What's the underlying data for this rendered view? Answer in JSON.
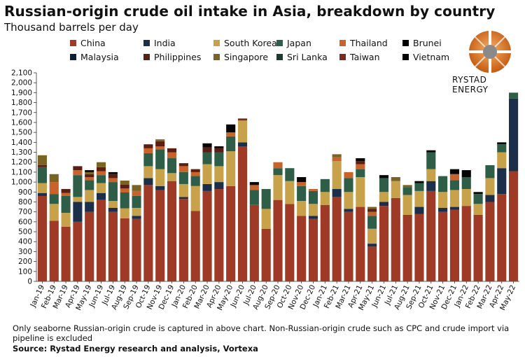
{
  "header": {
    "title": "Russian-origin crude oil intake in Asia, breakdown by country",
    "subtitle": "Thousand barrels per day"
  },
  "logo": {
    "text": "RYSTAD ENERGY"
  },
  "footer": {
    "note": "Only seaborne Russian-origin crude is captured in above chart. Non-Russian-origin crude such as CPC and crude import via pipeline is excluded",
    "source": "Source: Rystad Energy research and analysis,  Vortexa"
  },
  "chart_data": {
    "type": "bar",
    "stacked": true,
    "ylim": [
      0,
      2100
    ],
    "yticks": [
      0,
      100,
      200,
      300,
      400,
      500,
      600,
      700,
      800,
      900,
      1000,
      1100,
      1200,
      1300,
      1400,
      1500,
      1600,
      1700,
      1800,
      1900,
      2000,
      2100
    ],
    "ytick_labels": [
      "0",
      "100",
      "200",
      "300",
      "400",
      "500",
      "600",
      "700",
      "800",
      "900",
      "1,000",
      "1,100",
      "1,200",
      "1,300",
      "1,400",
      "1,500",
      "1,600",
      "1,700",
      "1,800",
      "1,900",
      "2,000",
      "2,100"
    ],
    "legend_position": "top",
    "grid": false,
    "categories": [
      "Jan-19",
      "Feb-19",
      "Mar-19",
      "Apr-19",
      "May-19",
      "Jun-19",
      "Jul-19",
      "Aug-19",
      "Sep-19",
      "Oct-19",
      "Nov-19",
      "Dec-19",
      "Jan-20",
      "Feb-20",
      "Mar-20",
      "Apr-20",
      "May-20",
      "Jun-20",
      "Jul-20",
      "Aug-20",
      "Sep-20",
      "Oct-20",
      "Nov-20",
      "Dec-20",
      "Jan-21",
      "Feb-21",
      "Mar-21",
      "Apr-21",
      "May-21",
      "Jun-21",
      "Jul-21",
      "Aug-21",
      "Sep-21",
      "Oct-21",
      "Nov-21",
      "Dec-21",
      "Jan-22",
      "Feb-22",
      "Mar-22",
      "Apr-22",
      "May-22"
    ],
    "x_labels_shown": [
      "Jan-19",
      "Mar-19",
      "May-19",
      "Jul-19",
      "Aug-19",
      "Sep-19",
      "Oct-19",
      "Nov-19",
      "Dec-19",
      "Jan-20",
      "Feb-20",
      "Mar-20",
      "Apr-20",
      "May-20",
      "Jun-20",
      "Jul-20",
      "Aug-20",
      "Sep-20",
      "Oct-20",
      "Nov-20",
      "Dec-20",
      "Jan-21",
      "Feb-21",
      "Mar-21",
      "Apr-21",
      "May-21",
      "Jun-21",
      "Jul-21",
      "Aug-21",
      "Sep-21",
      "Oct-21",
      "Nov-21",
      "Dec-21",
      "Jan-22",
      "Feb-22",
      "Mar-22",
      "Apr-22",
      "May-22"
    ],
    "x_labels_shown_full": [
      "Jan-19",
      "Feb-19",
      "Mar-19",
      "Apr-19",
      "May-19",
      "Jun-19",
      "Jul-19",
      "Aug-19",
      "Sep-19",
      "Oct-19",
      "Nov-19",
      "Dec-19",
      "Jan-20",
      "Feb-20",
      "Mar-20",
      "Apr-20",
      "May-20",
      "Jun-20",
      "Jul-20",
      "Aug-20",
      "Sep-20",
      "Oct-20",
      "Nov-20",
      "Dec-20",
      "Jan-21",
      "Feb-21",
      "Mar-21",
      "Apr-21",
      "May-21",
      "Jun-21",
      "Jul-21",
      "Aug-21",
      "Sep-21",
      "Oct-21",
      "Nov-21",
      "Dec-21",
      "Jan-22",
      "Feb-22",
      "Mar-22",
      "Apr-22",
      "May-22"
    ],
    "series": [
      {
        "name": "China",
        "color": "#9e3a26",
        "values": [
          860,
          610,
          550,
          600,
          700,
          820,
          700,
          635,
          630,
          970,
          920,
          1010,
          830,
          710,
          910,
          930,
          960,
          1360,
          770,
          530,
          820,
          780,
          660,
          630,
          770,
          850,
          700,
          750,
          350,
          760,
          840,
          670,
          680,
          910,
          700,
          720,
          760,
          670,
          800,
          880,
          1110
        ]
      },
      {
        "name": "India",
        "color": "#1b2f4a",
        "values": [
          30,
          0,
          0,
          200,
          100,
          70,
          40,
          0,
          30,
          70,
          40,
          0,
          20,
          0,
          70,
          70,
          0,
          40,
          0,
          0,
          0,
          0,
          0,
          30,
          0,
          80,
          30,
          0,
          30,
          40,
          0,
          0,
          70,
          100,
          40,
          30,
          0,
          0,
          70,
          260,
          730
        ]
      },
      {
        "name": "South Korea",
        "color": "#c7a24b",
        "values": [
          100,
          170,
          140,
          50,
          120,
          100,
          70,
          100,
          80,
          120,
          170,
          80,
          130,
          250,
          200,
          160,
          350,
          220,
          0,
          200,
          250,
          230,
          150,
          120,
          130,
          280,
          170,
          300,
          150,
          100,
          170,
          200,
          160,
          120,
          160,
          170,
          170,
          110,
          170,
          160,
          0
        ]
      },
      {
        "name": "Japan",
        "color": "#2e5e47",
        "values": [
          160,
          100,
          170,
          220,
          100,
          80,
          190,
          160,
          120,
          130,
          200,
          150,
          120,
          100,
          120,
          140,
          150,
          0,
          150,
          200,
          70,
          130,
          150,
          130,
          130,
          0,
          140,
          80,
          130,
          140,
          0,
          80,
          80,
          170,
          160,
          100,
          120,
          100,
          130,
          80,
          60
        ]
      },
      {
        "name": "Thailand",
        "color": "#c9622b",
        "values": [
          0,
          120,
          30,
          50,
          30,
          40,
          40,
          40,
          50,
          50,
          30,
          60,
          60,
          40,
          0,
          0,
          40,
          0,
          50,
          0,
          60,
          0,
          40,
          20,
          0,
          40,
          60,
          50,
          40,
          0,
          0,
          0,
          0,
          0,
          0,
          60,
          0,
          0,
          0,
          0,
          0
        ]
      },
      {
        "name": "Brunei",
        "color": "#000000",
        "values": [
          0,
          0,
          0,
          0,
          0,
          0,
          0,
          0,
          0,
          0,
          0,
          0,
          0,
          0,
          0,
          0,
          0,
          0,
          0,
          0,
          0,
          0,
          0,
          0,
          0,
          0,
          0,
          0,
          0,
          0,
          0,
          0,
          0,
          0,
          0,
          0,
          0,
          0,
          0,
          0,
          0
        ]
      },
      {
        "name": "Malaysia",
        "color": "#0d1f33",
        "values": [
          0,
          0,
          0,
          0,
          0,
          0,
          0,
          0,
          0,
          0,
          0,
          0,
          0,
          0,
          0,
          0,
          0,
          0,
          0,
          0,
          0,
          0,
          0,
          0,
          0,
          0,
          0,
          0,
          0,
          0,
          0,
          0,
          0,
          0,
          0,
          0,
          0,
          0,
          0,
          0,
          0
        ]
      },
      {
        "name": "Philippines",
        "color": "#5a1e12",
        "values": [
          20,
          0,
          40,
          40,
          30,
          40,
          40,
          40,
          0,
          40,
          50,
          40,
          30,
          30,
          50,
          40,
          0,
          0,
          0,
          0,
          0,
          0,
          0,
          0,
          0,
          0,
          0,
          30,
          30,
          0,
          0,
          0,
          0,
          0,
          0,
          0,
          0,
          0,
          0,
          0,
          0
        ]
      },
      {
        "name": "Singapore",
        "color": "#7a6424",
        "values": [
          100,
          80,
          0,
          0,
          20,
          50,
          0,
          40,
          60,
          0,
          20,
          0,
          0,
          0,
          0,
          0,
          0,
          0,
          0,
          0,
          0,
          0,
          0,
          0,
          0,
          30,
          0,
          0,
          20,
          0,
          40,
          20,
          0,
          0,
          0,
          0,
          0,
          0,
          0,
          0,
          0
        ]
      },
      {
        "name": "Sri Lanka",
        "color": "#1f3a2e",
        "values": [
          0,
          0,
          0,
          0,
          0,
          0,
          0,
          0,
          0,
          0,
          0,
          0,
          0,
          0,
          0,
          0,
          0,
          0,
          0,
          0,
          0,
          0,
          0,
          0,
          0,
          0,
          0,
          0,
          0,
          0,
          0,
          0,
          0,
          0,
          0,
          0,
          0,
          0,
          0,
          0,
          0
        ]
      },
      {
        "name": "Taiwan",
        "color": "#7a2a1e",
        "values": [
          0,
          0,
          0,
          0,
          0,
          0,
          0,
          0,
          0,
          0,
          0,
          0,
          0,
          0,
          0,
          0,
          0,
          20,
          0,
          0,
          0,
          0,
          0,
          0,
          0,
          0,
          0,
          0,
          0,
          0,
          0,
          0,
          0,
          0,
          0,
          0,
          0,
          0,
          0,
          0,
          0
        ]
      },
      {
        "name": "Vietnam",
        "color": "#050505",
        "values": [
          0,
          0,
          0,
          0,
          20,
          0,
          20,
          0,
          0,
          0,
          0,
          0,
          0,
          0,
          40,
          20,
          80,
          0,
          30,
          0,
          0,
          0,
          50,
          0,
          0,
          0,
          0,
          30,
          0,
          30,
          0,
          0,
          20,
          20,
          0,
          50,
          70,
          20,
          0,
          20,
          0
        ]
      }
    ]
  }
}
